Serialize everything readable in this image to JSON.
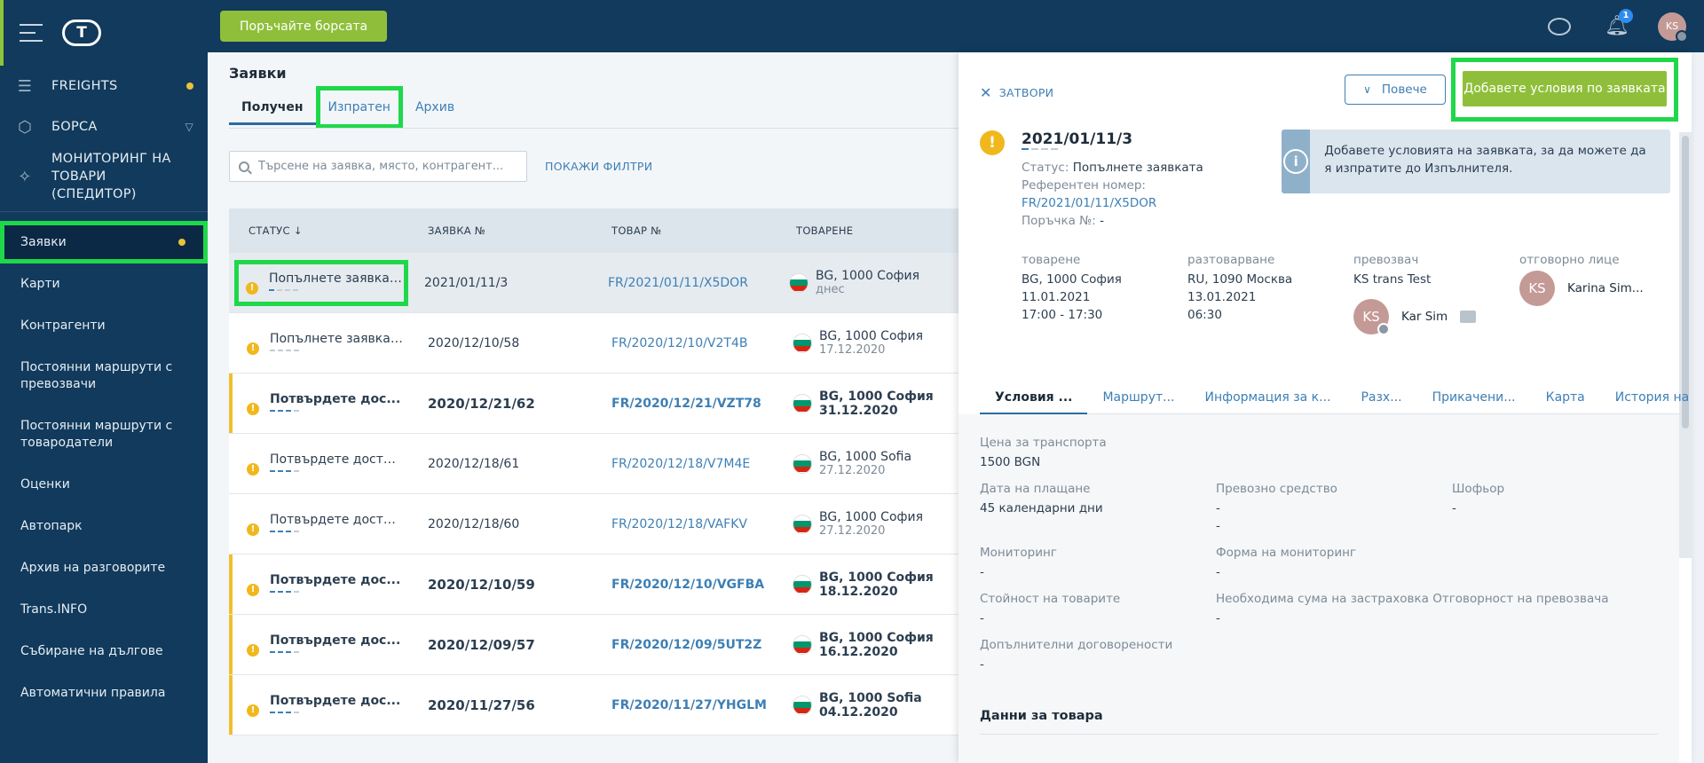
{
  "sidebar": {
    "main": [
      {
        "label": "FREIGHTS",
        "icon": "freights-icon",
        "dot": true
      },
      {
        "label": "БОРСА",
        "icon": "box-icon",
        "chevron": true
      },
      {
        "label": "МОНИТОРИНГ НА ТОВАРИ (СПЕДИТОР)",
        "icon": "satellite-icon"
      }
    ],
    "sub": [
      "Заявки",
      "Карти",
      "Контрагенти",
      "Постоянни маршрути с превозвачи",
      "Постоянни маршрути с товародатели",
      "Оценки",
      "Автопарк",
      "Архив на разговорите",
      "Trans.INFO",
      "Събиране на дългове",
      "Автоматични правила"
    ]
  },
  "topbar": {
    "exchange_button": "Поръчайте борсата",
    "notifications_count": "1",
    "avatar_initials": "KS"
  },
  "page": {
    "title": "Заявки",
    "tabs": [
      "Получен",
      "Изпратен",
      "Архив"
    ],
    "search_placeholder": "Търсене на заявка, място, контрагент...",
    "filters_link": "ПОКАЖИ ФИЛТРИ"
  },
  "table": {
    "headers": [
      "СТАТУС ↓",
      "ЗАЯВКА №",
      "ТОВАР №",
      "ТОВАРЕНЕ"
    ],
    "rows": [
      {
        "status": "Попълнете заявката",
        "number": "2021/01/11/3",
        "ref": "FR/2021/01/11/X5DOR",
        "place": "BG, 1000 София",
        "date": "днес",
        "dashes": 1
      },
      {
        "status": "Попълнете заявката",
        "number": "2020/12/10/58",
        "ref": "FR/2020/12/10/V2T4B",
        "place": "BG, 1000 София",
        "date": "17.12.2020",
        "dashes": 0
      },
      {
        "status": "Потвърдете дос...",
        "number": "2020/12/21/62",
        "ref": "FR/2020/12/21/VZT78",
        "place": "BG, 1000 София",
        "date": "31.12.2020",
        "dashes": 3
      },
      {
        "status": "Потвърдете доставк...",
        "number": "2020/12/18/61",
        "ref": "FR/2020/12/18/V7M4E",
        "place": "BG, 1000 Sofia",
        "date": "27.12.2020",
        "dashes": 3
      },
      {
        "status": "Потвърдете доставк...",
        "number": "2020/12/18/60",
        "ref": "FR/2020/12/18/VAFKV",
        "place": "BG, 1000 София",
        "date": "27.12.2020",
        "dashes": 3
      },
      {
        "status": "Потвърдете дос...",
        "number": "2020/12/10/59",
        "ref": "FR/2020/12/10/VGFBA",
        "place": "BG, 1000 София",
        "date": "18.12.2020",
        "dashes": 3
      },
      {
        "status": "Потвърдете дос...",
        "number": "2020/12/09/57",
        "ref": "FR/2020/12/09/5UT2Z",
        "place": "BG, 1000 София",
        "date": "16.12.2020",
        "dashes": 3
      },
      {
        "status": "Потвърдете дос...",
        "number": "2020/11/27/56",
        "ref": "FR/2020/11/27/YHGLM",
        "place": "BG, 1000 Sofia",
        "date": "04.12.2020",
        "dashes": 3
      }
    ]
  },
  "panel": {
    "close": "ЗАТВОРИ",
    "more": "Повече",
    "add_button": "Добавете условия по заявката",
    "id": "2021/01/11/3",
    "status_label": "Статус:",
    "status_value": "Попълнете заявката",
    "ref_label": "Референтен номер:",
    "ref_value": "FR/2021/01/11/X5DOR",
    "order_label": "Поръчка №:",
    "order_value": "-",
    "info": "Добавете условията на заявката, за да можете да я изпратите до Изпълнителя.",
    "loading_label": "товарене",
    "loading_place": "BG, 1000 София",
    "loading_date": "11.01.2021",
    "loading_time": "17:00 - 17:30",
    "unloading_label": "разтоварване",
    "unloading_place": "RU, 1090 Москва",
    "unloading_date": "13.01.2021",
    "unloading_time": "06:30",
    "carrier_label": "превозвач",
    "carrier_name": "KS trans Test",
    "carrier_initials": "KS",
    "carrier_person": "Kar Sim",
    "responsible_label": "отговорно лице",
    "responsible_initials": "KS",
    "responsible_name": "Karina Sim...",
    "tabs": [
      "Условия ...",
      "Маршрут...",
      "Информация за к...",
      "Разх...",
      "Прикачени...",
      "Карта",
      "История на ..."
    ],
    "price_label": "Цена за транспорта",
    "price_value": "1500 BGN",
    "payment_label": "Дата на плащане",
    "payment_value": "45 календарни дни",
    "vehicle_label": "Превозно средство",
    "vehicle_value1": "-",
    "vehicle_value2": "-",
    "driver_label": "Шофьор",
    "driver_value": "-",
    "monitoring_label": "Мониторинг",
    "monitoring_value": "-",
    "monitoring_form_label": "Форма на мониторинг",
    "monitoring_form_value": "-",
    "goods_value_label": "Стойност на товарите",
    "goods_value_value": "-",
    "insurance_label": "Необходима сума на застраховка",
    "insurance_value": "-",
    "liability_label": "Отговорност на превозвача",
    "additional_label": "Допълнителни договорености",
    "additional_value": "-",
    "goods_section": "Данни за товара"
  },
  "colors": {
    "sidebar": "#113a5c",
    "accent_green": "#8fbf3a",
    "highlight": "#1fd84a",
    "warning": "#f0b81c",
    "link": "#3d7fb5"
  }
}
